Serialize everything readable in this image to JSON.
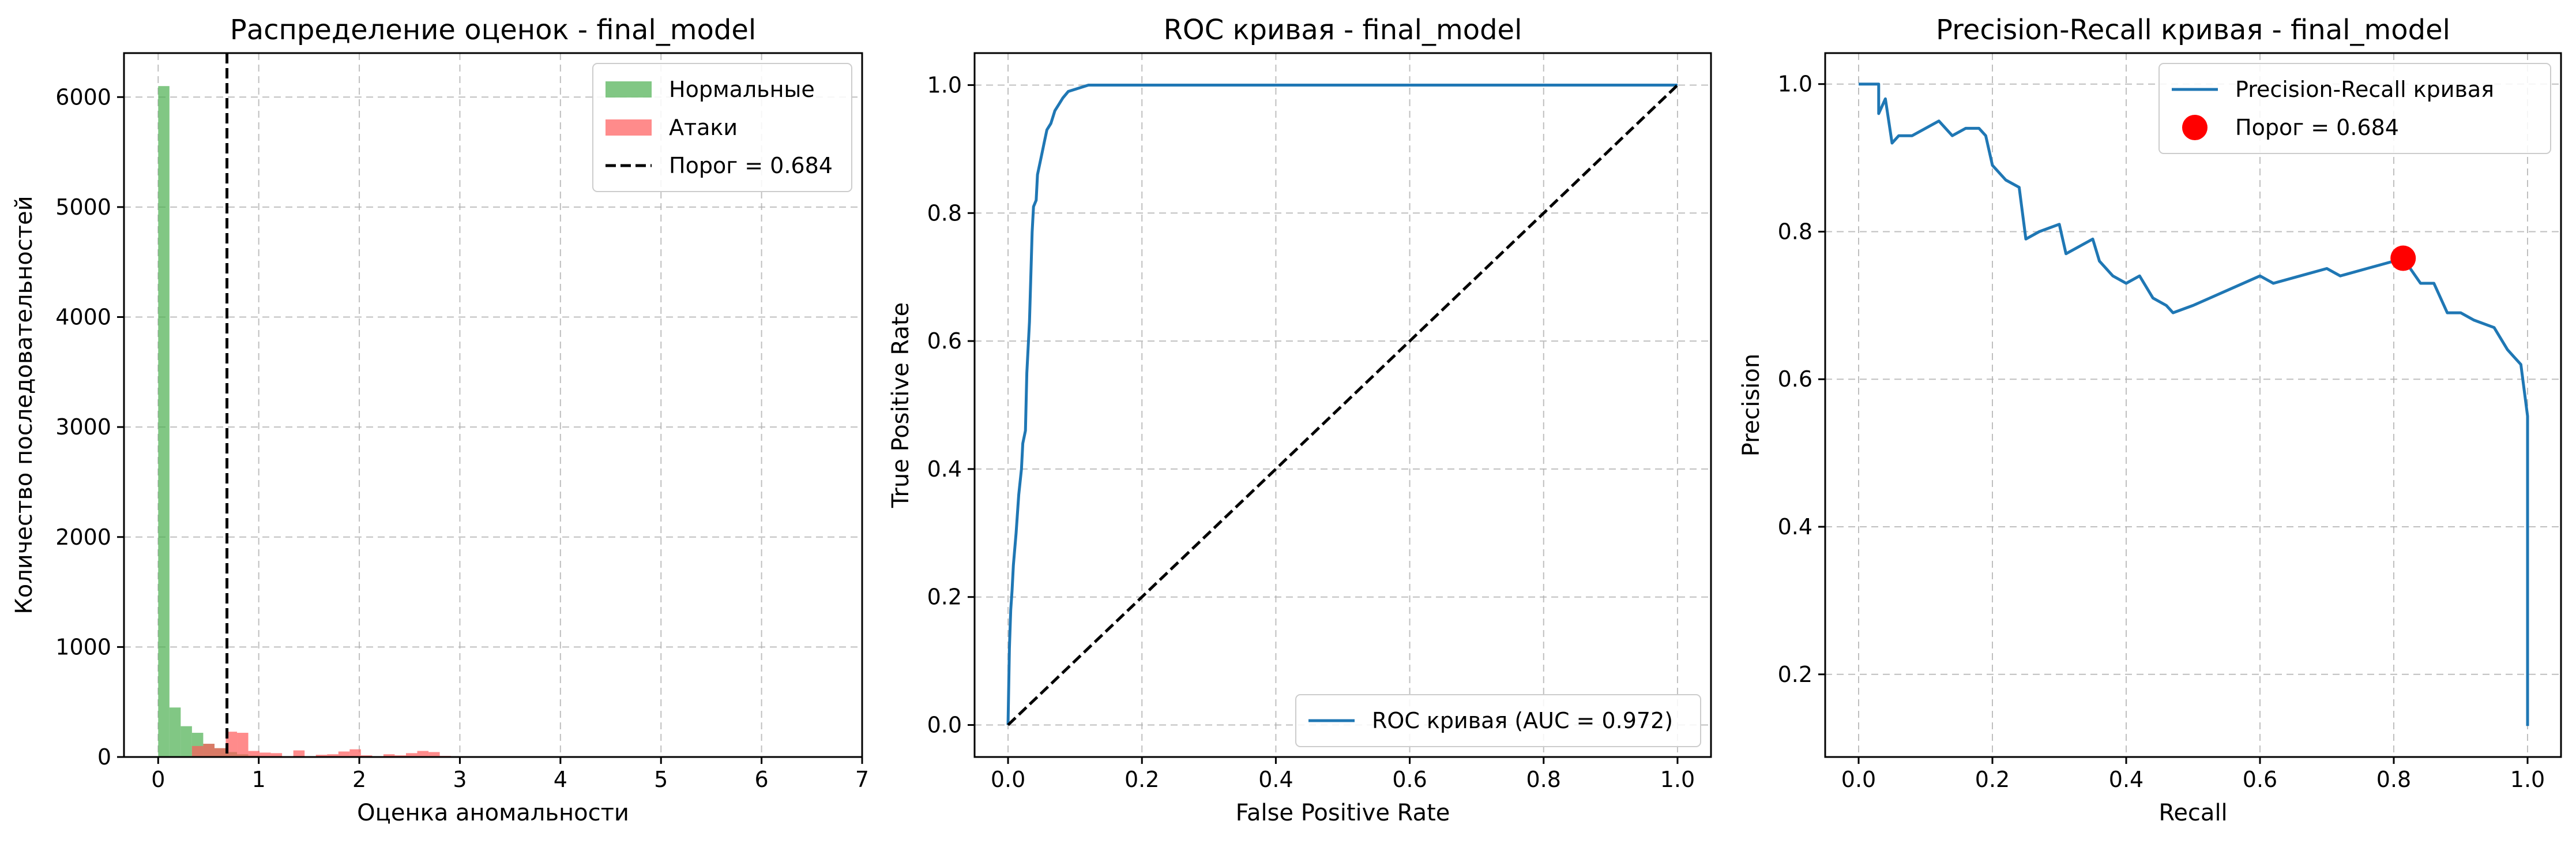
{
  "chart_data": [
    {
      "type": "histogram",
      "title": "Распределение оценок - final_model",
      "xlabel": "Оценка аномальности",
      "ylabel": "Количество последовательностей",
      "xlim": [
        -0.34,
        7.0
      ],
      "ylim": [
        0,
        6400
      ],
      "xticks": [
        0,
        1,
        2,
        3,
        4,
        5,
        6,
        7
      ],
      "yticks": [
        0,
        1000,
        2000,
        3000,
        4000,
        5000,
        6000
      ],
      "grid": true,
      "legend_position": "top-right",
      "bin_width": 0.112,
      "series": [
        {
          "name": "Нормальные",
          "color": "#4caf50",
          "bins": [
            {
              "x": 0.0,
              "count": 6100
            },
            {
              "x": 0.112,
              "count": 450
            },
            {
              "x": 0.224,
              "count": 280
            },
            {
              "x": 0.336,
              "count": 220
            },
            {
              "x": 0.448,
              "count": 120
            },
            {
              "x": 0.56,
              "count": 80
            },
            {
              "x": 0.672,
              "count": 45
            },
            {
              "x": 0.784,
              "count": 25
            },
            {
              "x": 0.896,
              "count": 12
            },
            {
              "x": 1.008,
              "count": 6
            }
          ]
        },
        {
          "name": "Атаки",
          "color": "#ff5a5a",
          "bins": [
            {
              "x": 0.336,
              "count": 100
            },
            {
              "x": 0.448,
              "count": 120
            },
            {
              "x": 0.56,
              "count": 80
            },
            {
              "x": 0.672,
              "count": 230
            },
            {
              "x": 0.784,
              "count": 220
            },
            {
              "x": 0.896,
              "count": 55
            },
            {
              "x": 1.008,
              "count": 40
            },
            {
              "x": 1.12,
              "count": 35
            },
            {
              "x": 1.344,
              "count": 60
            },
            {
              "x": 1.568,
              "count": 20
            },
            {
              "x": 1.68,
              "count": 25
            },
            {
              "x": 1.792,
              "count": 50
            },
            {
              "x": 1.904,
              "count": 70
            },
            {
              "x": 2.016,
              "count": 15
            },
            {
              "x": 2.24,
              "count": 25
            },
            {
              "x": 2.352,
              "count": 15
            },
            {
              "x": 2.464,
              "count": 35
            },
            {
              "x": 2.576,
              "count": 55
            },
            {
              "x": 2.688,
              "count": 45
            },
            {
              "x": 2.8,
              "count": 10
            }
          ]
        }
      ],
      "threshold": {
        "name": "Порог = 0.684",
        "value": 0.684,
        "color": "#000000"
      }
    },
    {
      "type": "line",
      "title": "ROC кривая - final_model",
      "xlabel": "False Positive Rate",
      "ylabel": "True Positive Rate",
      "xlim": [
        -0.05,
        1.05
      ],
      "ylim": [
        -0.05,
        1.05
      ],
      "xticks": [
        0.0,
        0.2,
        0.4,
        0.6,
        0.8,
        1.0
      ],
      "yticks": [
        0.0,
        0.2,
        0.4,
        0.6,
        0.8,
        1.0
      ],
      "grid": true,
      "legend_position": "bottom-right",
      "series": [
        {
          "name": "ROC кривая (AUC = 0.972)",
          "color": "#1f77b4",
          "points": [
            [
              0,
              0
            ],
            [
              0.002,
              0.12
            ],
            [
              0.004,
              0.18
            ],
            [
              0.006,
              0.21
            ],
            [
              0.008,
              0.25
            ],
            [
              0.012,
              0.3
            ],
            [
              0.016,
              0.36
            ],
            [
              0.02,
              0.4
            ],
            [
              0.022,
              0.44
            ],
            [
              0.026,
              0.46
            ],
            [
              0.028,
              0.55
            ],
            [
              0.03,
              0.59
            ],
            [
              0.032,
              0.63
            ],
            [
              0.034,
              0.7
            ],
            [
              0.036,
              0.77
            ],
            [
              0.038,
              0.81
            ],
            [
              0.042,
              0.82
            ],
            [
              0.044,
              0.86
            ],
            [
              0.05,
              0.89
            ],
            [
              0.054,
              0.91
            ],
            [
              0.058,
              0.93
            ],
            [
              0.064,
              0.94
            ],
            [
              0.07,
              0.96
            ],
            [
              0.076,
              0.97
            ],
            [
              0.082,
              0.98
            ],
            [
              0.09,
              0.99
            ],
            [
              0.12,
              1.0
            ],
            [
              1.0,
              1.0
            ]
          ]
        },
        {
          "name": "",
          "color": "#000000",
          "dashed": true,
          "points": [
            [
              0,
              0
            ],
            [
              1,
              1
            ]
          ]
        }
      ]
    },
    {
      "type": "line",
      "title": "Precision-Recall кривая - final_model",
      "xlabel": "Recall",
      "ylabel": "Precision",
      "xlim": [
        -0.05,
        1.05
      ],
      "ylim": [
        0.088,
        1.042
      ],
      "xticks": [
        0.0,
        0.2,
        0.4,
        0.6,
        0.8,
        1.0
      ],
      "yticks": [
        0.2,
        0.4,
        0.6,
        0.8,
        1.0
      ],
      "grid": true,
      "legend_position": "top-right",
      "series": [
        {
          "name": "Precision-Recall кривая",
          "color": "#1f77b4",
          "points": [
            [
              0,
              1.0
            ],
            [
              0.03,
              1.0
            ],
            [
              0.03,
              0.96
            ],
            [
              0.04,
              0.98
            ],
            [
              0.05,
              0.92
            ],
            [
              0.06,
              0.93
            ],
            [
              0.08,
              0.93
            ],
            [
              0.1,
              0.94
            ],
            [
              0.12,
              0.95
            ],
            [
              0.14,
              0.93
            ],
            [
              0.16,
              0.94
            ],
            [
              0.18,
              0.94
            ],
            [
              0.19,
              0.93
            ],
            [
              0.2,
              0.89
            ],
            [
              0.22,
              0.87
            ],
            [
              0.24,
              0.86
            ],
            [
              0.25,
              0.79
            ],
            [
              0.27,
              0.8
            ],
            [
              0.3,
              0.81
            ],
            [
              0.31,
              0.77
            ],
            [
              0.33,
              0.78
            ],
            [
              0.35,
              0.79
            ],
            [
              0.36,
              0.76
            ],
            [
              0.38,
              0.74
            ],
            [
              0.4,
              0.73
            ],
            [
              0.42,
              0.74
            ],
            [
              0.44,
              0.71
            ],
            [
              0.46,
              0.7
            ],
            [
              0.47,
              0.69
            ],
            [
              0.5,
              0.7
            ],
            [
              0.55,
              0.72
            ],
            [
              0.6,
              0.74
            ],
            [
              0.62,
              0.73
            ],
            [
              0.66,
              0.74
            ],
            [
              0.7,
              0.75
            ],
            [
              0.72,
              0.74
            ],
            [
              0.76,
              0.75
            ],
            [
              0.8,
              0.76
            ],
            [
              0.814,
              0.764
            ],
            [
              0.84,
              0.73
            ],
            [
              0.86,
              0.73
            ],
            [
              0.88,
              0.69
            ],
            [
              0.9,
              0.69
            ],
            [
              0.92,
              0.68
            ],
            [
              0.95,
              0.67
            ],
            [
              0.97,
              0.64
            ],
            [
              0.98,
              0.63
            ],
            [
              0.99,
              0.62
            ],
            [
              1.0,
              0.55
            ],
            [
              1.0,
              0.13
            ]
          ]
        }
      ],
      "marker": {
        "name": "Порог = 0.684",
        "x": 0.814,
        "y": 0.764,
        "color": "#ff0000"
      }
    }
  ]
}
